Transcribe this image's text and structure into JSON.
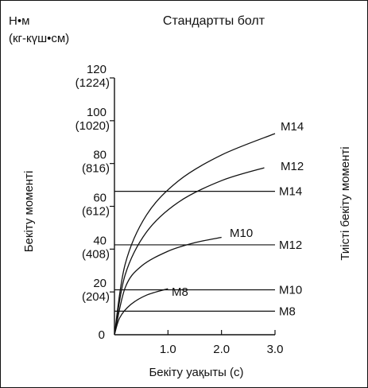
{
  "chart_data": {
    "type": "line",
    "title": "Стандартты болт",
    "unit_line1": "Н•м",
    "unit_line2": "(кг-күш•см)",
    "xlabel": "Бекіту уақыты (с)",
    "ylabel_left": "Бекіту моменті",
    "ylabel_right": "Тиісті бекіту моменті",
    "xlim": [
      0,
      3.0
    ],
    "ylim": [
      0,
      120
    ],
    "x_ticks": [
      {
        "value": 1.0,
        "label": "1.0"
      },
      {
        "value": 2.0,
        "label": "2.0"
      },
      {
        "value": 3.0,
        "label": "3.0"
      }
    ],
    "y_ticks": [
      {
        "value": 0,
        "label": "0",
        "sub": ""
      },
      {
        "value": 20,
        "label": "20",
        "sub": "(204)"
      },
      {
        "value": 40,
        "label": "40",
        "sub": "(408)"
      },
      {
        "value": 60,
        "label": "60",
        "sub": "(612)"
      },
      {
        "value": 80,
        "label": "80",
        "sub": "(816)"
      },
      {
        "value": 100,
        "label": "100",
        "sub": "(1020)"
      },
      {
        "value": 120,
        "label": "120",
        "sub": "(1224)"
      }
    ],
    "series": [
      {
        "name": "M8",
        "points": [
          [
            0,
            0
          ],
          [
            0.1,
            8
          ],
          [
            0.3,
            14
          ],
          [
            0.6,
            18.5
          ],
          [
            1.0,
            21.5
          ]
        ]
      },
      {
        "name": "M10",
        "points": [
          [
            0,
            0
          ],
          [
            0.2,
            22
          ],
          [
            0.5,
            32
          ],
          [
            1.0,
            39
          ],
          [
            1.5,
            43
          ],
          [
            2.0,
            45.5
          ]
        ]
      },
      {
        "name": "M12",
        "points": [
          [
            0,
            0
          ],
          [
            0.2,
            28
          ],
          [
            0.6,
            48
          ],
          [
            1.2,
            62
          ],
          [
            2.0,
            72
          ],
          [
            2.8,
            78
          ]
        ]
      },
      {
        "name": "M14",
        "points": [
          [
            0,
            0
          ],
          [
            0.2,
            33
          ],
          [
            0.6,
            56
          ],
          [
            1.2,
            72
          ],
          [
            2.0,
            84
          ],
          [
            3.0,
            94
          ]
        ]
      }
    ],
    "reference_lines": [
      {
        "label": "M14",
        "value": 67
      },
      {
        "label": "M12",
        "value": 42
      },
      {
        "label": "M10",
        "value": 21
      },
      {
        "label": "M8",
        "value": 11
      }
    ]
  }
}
